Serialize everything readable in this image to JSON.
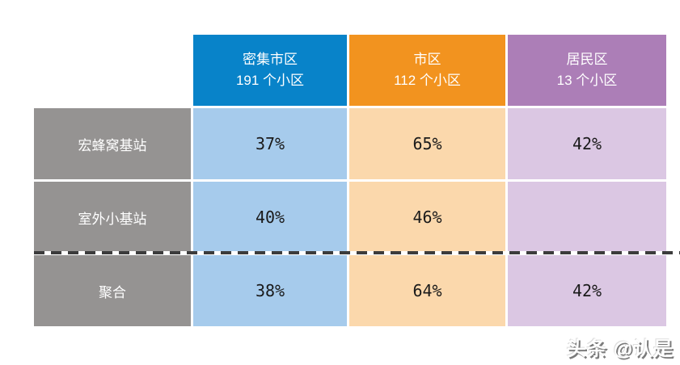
{
  "table": {
    "row_header_color": "#959392",
    "columns": [
      {
        "title": "密集市区",
        "subtitle": "191 个小区",
        "header_color": "#0883C9",
        "cell_color": "#A6CBEC"
      },
      {
        "title": "市区",
        "subtitle": "112 个小区",
        "header_color": "#F2931F",
        "cell_color": "#FBD8AC"
      },
      {
        "title": "居民区",
        "subtitle": "13 个小区",
        "header_color": "#AC7EB7",
        "cell_color": "#DBC7E3"
      }
    ],
    "rows": [
      {
        "label": "宏蜂窝基站",
        "values": [
          "37%",
          "65%",
          "42%"
        ]
      },
      {
        "label": "室外小基站",
        "values": [
          "40%",
          "46%",
          ""
        ]
      },
      {
        "label": "聚合",
        "values": [
          "38%",
          "64%",
          "42%"
        ]
      }
    ]
  },
  "divider": {
    "style_color": "#3c3c3c"
  },
  "watermark": {
    "text": "头条 @认是"
  },
  "chart_data": {
    "type": "table",
    "title": "",
    "columns": [
      "密集市区 191 个小区",
      "市区 112 个小区",
      "居民区 13 个小区"
    ],
    "row_labels": [
      "宏蜂窝基站",
      "室外小基站",
      "聚合"
    ],
    "values_percent": [
      [
        37,
        65,
        42
      ],
      [
        40,
        46,
        null
      ],
      [
        38,
        64,
        42
      ]
    ],
    "column_cell_counts": [
      191,
      112,
      13
    ],
    "legend_position": "none",
    "notes_layout": "dashed horizontal divider separates 聚合 (aggregate) row from the two rows above"
  }
}
